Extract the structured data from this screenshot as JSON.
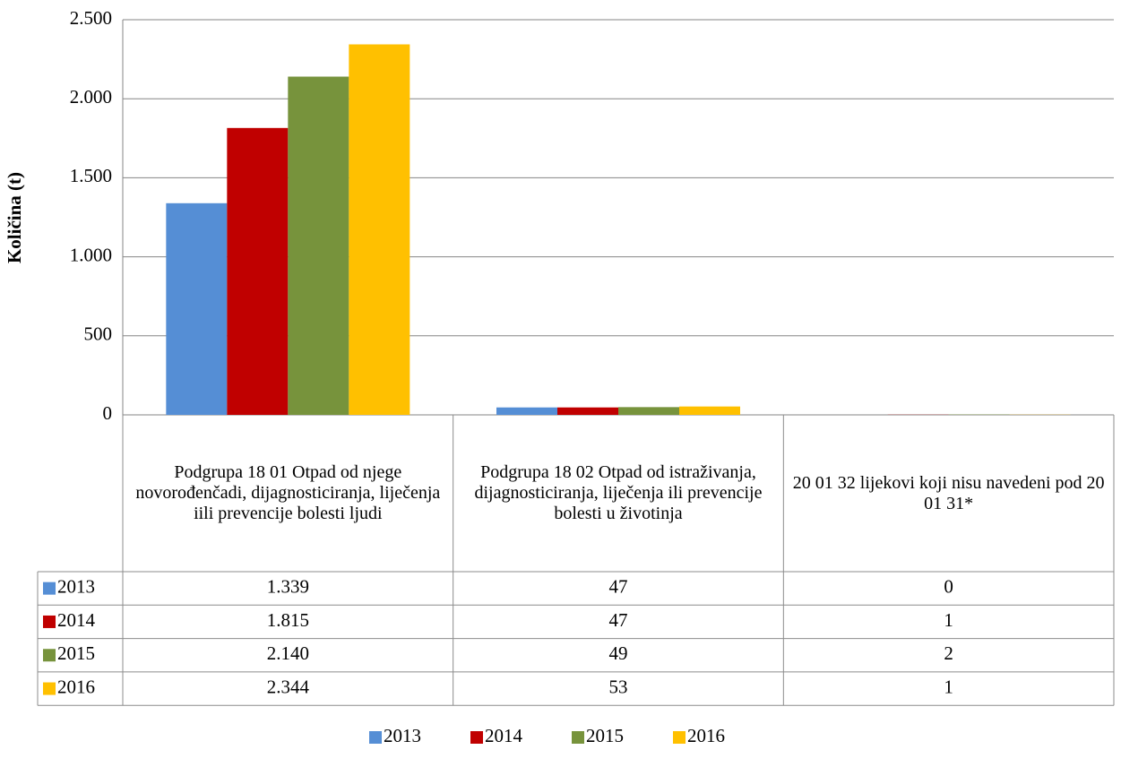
{
  "chart_data": {
    "type": "bar",
    "y_label": "Količina (t)",
    "categories": [
      "Podgrupa 18 01 Otpad od njege novorođenčadi, dijagnosticiranja, liječenja iili prevencije bolesti ljudi",
      "Podgrupa 18 02 Otpad od istraživanja, dijagnosticiranja, liječenja ili prevencije bolesti u životinja",
      "20 01 32 lijekovi koji nisu navedeni pod 20 01 31*"
    ],
    "series": [
      {
        "name": "2013",
        "color": "#558ed5",
        "values": [
          1339,
          47,
          0
        ],
        "value_labels": [
          "1.339",
          "47",
          "0"
        ]
      },
      {
        "name": "2014",
        "color": "#c00000",
        "values": [
          1815,
          47,
          1
        ],
        "value_labels": [
          "1.815",
          "47",
          "1"
        ]
      },
      {
        "name": "2015",
        "color": "#77933c",
        "values": [
          2140,
          49,
          2
        ],
        "value_labels": [
          "2.140",
          "49",
          "2"
        ]
      },
      {
        "name": "2016",
        "color": "#ffc000",
        "values": [
          2344,
          53,
          1
        ],
        "value_labels": [
          "2.344",
          "53",
          "1"
        ]
      }
    ],
    "ylim": [
      0,
      2500
    ],
    "yticks": [
      0,
      500,
      {
        "value": 1000,
        "label": "1.000"
      },
      {
        "value": 1500,
        "label": "1.500"
      },
      {
        "value": 2000,
        "label": "2.000"
      },
      {
        "value": 2500,
        "label": "2.500"
      }
    ],
    "grid": true,
    "legend": "bottom"
  }
}
